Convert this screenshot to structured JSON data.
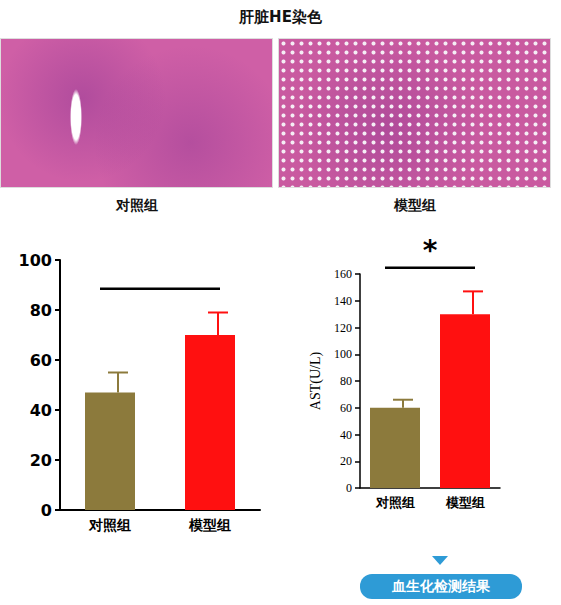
{
  "title": "肝脏HE染色",
  "images": [
    {
      "caption": "对照组"
    },
    {
      "caption": "模型组"
    }
  ],
  "chart_data": [
    {
      "type": "bar",
      "categories": [
        "对照组",
        "模型组"
      ],
      "values": [
        47,
        70
      ],
      "errors": [
        8,
        9
      ],
      "colors": [
        "#8c7a3c",
        "#ff1010"
      ],
      "ylim": [
        0,
        100
      ],
      "yticks": [
        0,
        20,
        40,
        60,
        80,
        100
      ]
    },
    {
      "type": "bar",
      "y_label": "AST(U/L)",
      "categories": [
        "对照组",
        "模型组"
      ],
      "values": [
        60,
        130
      ],
      "errors": [
        6,
        17
      ],
      "colors": [
        "#8c7a3c",
        "#ff1010"
      ],
      "ylim": [
        0,
        160
      ],
      "yticks": [
        0,
        20,
        40,
        60,
        80,
        100,
        120,
        140,
        160
      ],
      "annotations": [
        {
          "text": "*"
        }
      ]
    }
  ],
  "footer": "血生化检测结果"
}
